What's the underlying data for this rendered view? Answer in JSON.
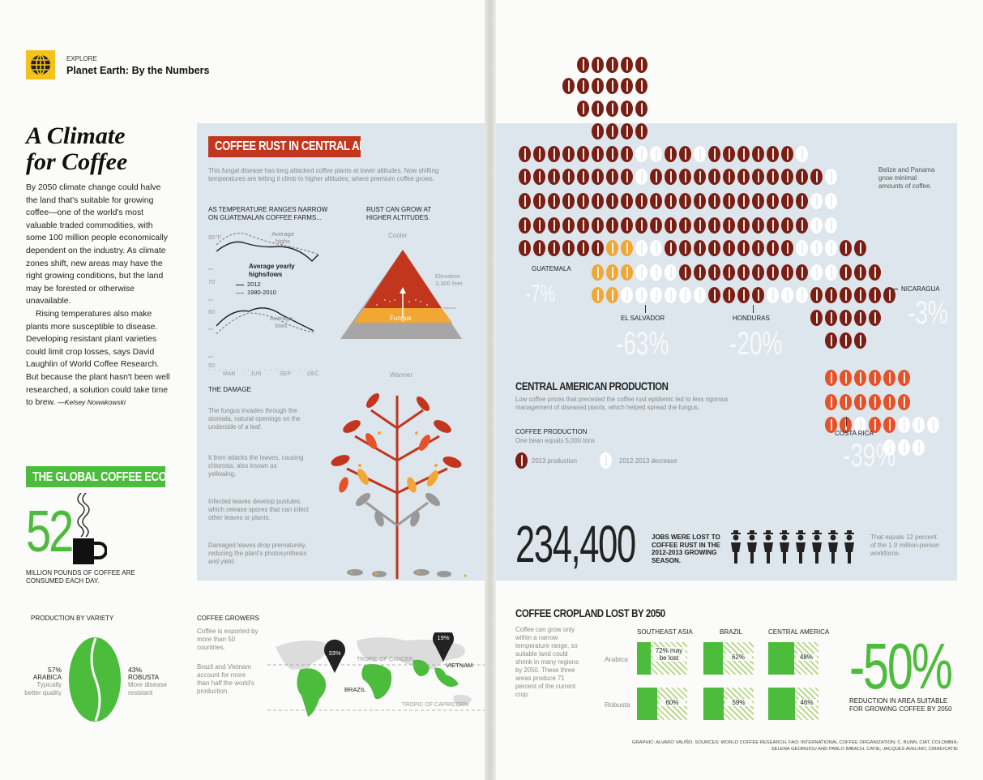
{
  "header": {
    "section": "EXPLORE",
    "title": "Planet Earth: By the Numbers"
  },
  "article": {
    "headline_line1": "A Climate",
    "headline_line2": "for Coffee",
    "paragraph1": "By 2050 climate change could halve the land that's suitable for growing coffee—one of the world's most valuable traded commodities, with some 100 million people economically dependent on the industry. As climate zones shift, new areas may have the right growing conditions, but the land may be forested or otherwise unavailable.",
    "paragraph2": "Rising temperatures also make plants more susceptible to disease. Developing resistant plant varieties could limit crop losses, says David Laughlin of World Coffee Research. But because the plant hasn't been well researched, a solution could take time to brew.",
    "byline": "—Kelsey Nowakowski"
  },
  "global_economy": {
    "banner": "THE GLOBAL COFFEE ECONOMY",
    "number": "52",
    "caption": "MILLION POUNDS OF COFFEE ARE CONSUMED EACH DAY."
  },
  "variety": {
    "title": "PRODUCTION BY VARIETY",
    "arabica_pct": "57%",
    "arabica_label": "ARABICA",
    "arabica_note": "Typically better quality",
    "robusta_pct": "43%",
    "robusta_label": "ROBUSTA",
    "robusta_note": "More disease resistant"
  },
  "growers": {
    "title": "COFFEE GROWERS",
    "text1": "Coffee is exported by more than 50 countries.",
    "text2": "Brazil and Vietnam account for more than half the world's production.",
    "brazil_pct": "33%",
    "brazil_label": "BRAZIL",
    "vietnam_pct": "19%",
    "vietnam_label": "VIETNAM",
    "tropic_cancer": "TROPIC OF CANCER",
    "tropic_capricorn": "TROPIC OF CAPRICORN"
  },
  "rust": {
    "banner": "COFFEE RUST IN CENTRAL AMERICA",
    "intro": "This fungal disease has long attacked coffee plants at lower altitudes. Now shifting temperatures are letting it climb to higher altitudes, where premium coffee grows.",
    "temp_title": "AS TEMPERATURE RANGES NARROW ON GUATEMALAN COFFEE FARMS...",
    "altitude_title": "RUST CAN GROW AT HIGHER ALTITUDES.",
    "y_ticks": [
      "85°F",
      "70",
      "60",
      "50"
    ],
    "x_ticks": [
      "MAR",
      "JUN",
      "SEP",
      "DEC"
    ],
    "avg_highs": "Average highs",
    "avg_lows": "Average lows",
    "legend_title": "Average yearly highs/lows",
    "legend_2012": "2012",
    "legend_1980": "1980-2010",
    "cooler": "Cooler",
    "warmer": "Warmer",
    "elevation": "Elevation 3,300 feet",
    "fungus": "Fungus",
    "damage_title": "THE DAMAGE",
    "damage1": "The fungus invades through the stomata, natural openings on the underside of a leaf.",
    "damage2": "It then attacks the leaves, causing chlorosis, also known as yellowing.",
    "damage3": "Infected leaves develop pustules, which release spores that can infect other leaves or plants.",
    "damage4": "Damaged leaves drop prematurely, reducing the plant's photosynthesis and yield."
  },
  "production": {
    "title": "CENTRAL AMERICAN PRODUCTION",
    "intro": "Low coffee prices that preceded the coffee rust epidemic led to less rigorous management of diseased plants, which helped spread the fungus.",
    "legend_title": "COFFEE PRODUCTION",
    "legend_unit": "One bean equals 5,000 tons",
    "legend_2013": "2013 production",
    "legend_decrease": "2012-2013 decrease",
    "belize_note": "Belize and Panama grow minimal amounts of coffee.",
    "countries": [
      {
        "name": "GUATEMALA",
        "change": "-7%"
      },
      {
        "name": "EL SALVADOR",
        "change": "-63%"
      },
      {
        "name": "HONDURAS",
        "change": "-20%"
      },
      {
        "name": "NICARAGUA",
        "change": "-3%"
      },
      {
        "name": "COSTA RICA",
        "change": "-39%"
      }
    ]
  },
  "jobs": {
    "number": "234,400",
    "text": "JOBS WERE LOST TO COFFEE RUST IN THE 2012-2013 GROWING SEASON.",
    "note": "That equals 12 percent of the 1.9 million-person workforce."
  },
  "cropland": {
    "title": "COFFEE CROPLAND LOST BY 2050",
    "intro": "Coffee can grow only within a narrow temperature range, so suitable land could shrink in many regions by 2050. These three areas produce 71 percent of the current crop.",
    "regions": [
      "SOUTHEAST ASIA",
      "BRAZIL",
      "CENTRAL AMERICA"
    ],
    "rows": [
      {
        "label": "Arabica",
        "values": [
          "72% may be lost",
          "62%",
          "48%"
        ],
        "fractions": [
          0.72,
          0.62,
          0.48
        ]
      },
      {
        "label": "Robusta",
        "values": [
          "60%",
          "59%",
          "46%"
        ],
        "fractions": [
          0.6,
          0.59,
          0.46
        ]
      }
    ],
    "big_number": "-50%",
    "big_caption": "REDUCTION IN AREA SUITABLE FOR GROWING COFFEE BY 2050"
  },
  "credits": {
    "line1": "GRAPHIC: ALVARO VALIÑO. SOURCES: WORLD COFFEE RESEARCH, FAO; INTERNATIONAL COFFEE ORGANIZATION; C. BUNN, CIAT, COLOMBIA;",
    "line2": "SELENA GEORGIOU AND PABLO IMBACH, CATIE; JACQUES AVELINO, CIRAD/CATIE"
  },
  "colors": {
    "red": "#c1361d",
    "green": "#4bbc3b",
    "bean_brown": "#7a1e13",
    "bean_yellow": "#f2a634",
    "bean_orange": "#e65128",
    "panel_blue": "#dde6ec"
  }
}
